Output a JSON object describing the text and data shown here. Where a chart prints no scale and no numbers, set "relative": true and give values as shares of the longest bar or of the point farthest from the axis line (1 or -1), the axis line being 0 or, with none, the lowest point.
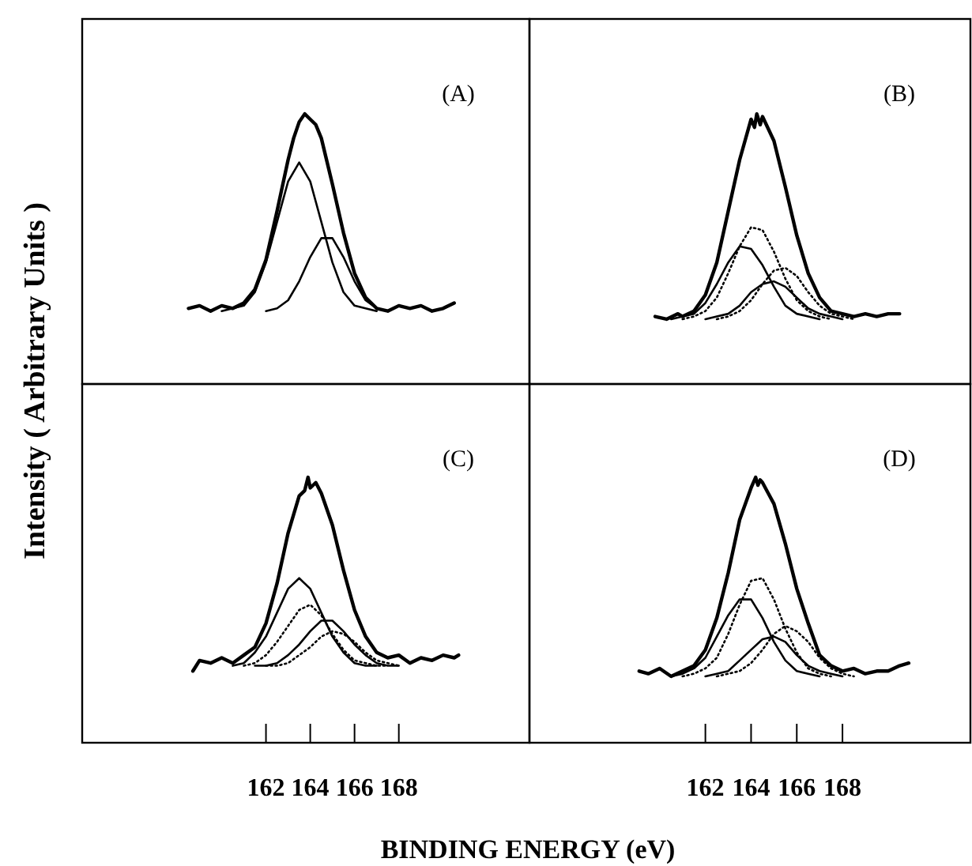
{
  "chart_data": [
    {
      "type": "line",
      "title": "(A)",
      "relative": true,
      "ylabel": "Intensity ( Arbitrary Units )",
      "xlim": [
        153.7,
        173.9
      ],
      "tick_labels": false,
      "series": [
        {
          "color": "#000000",
          "line_style": "solid",
          "x": [
            158.5,
            159,
            159.5,
            160,
            160.5,
            161,
            161.5,
            162,
            162.5,
            163,
            163.25,
            163.5,
            163.75,
            164,
            164.25,
            164.5,
            165,
            165.5,
            166,
            166.5,
            167,
            167.5,
            168,
            168.5,
            169,
            169.5,
            170,
            170.5
          ],
          "values": [
            0.28,
            0.29,
            0.27,
            0.29,
            0.28,
            0.3,
            0.35,
            0.46,
            0.64,
            0.83,
            0.91,
            0.97,
            1,
            0.98,
            0.96,
            0.91,
            0.74,
            0.56,
            0.41,
            0.32,
            0.28,
            0.27,
            0.29,
            0.28,
            0.29,
            0.27,
            0.28,
            0.3
          ]
        },
        {
          "color": "#000000",
          "line_style": "solid",
          "x": [
            160,
            160.5,
            161,
            161.5,
            162,
            162.5,
            163,
            163.5,
            164,
            164.5,
            165,
            165.5,
            166,
            166.5,
            167
          ],
          "values": [
            0.27,
            0.28,
            0.29,
            0.34,
            0.45,
            0.6,
            0.75,
            0.82,
            0.75,
            0.6,
            0.45,
            0.34,
            0.29,
            0.28,
            0.27
          ]
        },
        {
          "color": "#000000",
          "line_style": "solid",
          "x": [
            162,
            162.5,
            163,
            163.5,
            164,
            164.5,
            165,
            165.5,
            166,
            166.5,
            167,
            167.5
          ],
          "values": [
            0.27,
            0.28,
            0.31,
            0.38,
            0.47,
            0.54,
            0.54,
            0.47,
            0.38,
            0.31,
            0.28,
            0.27
          ]
        }
      ]
    },
    {
      "type": "line",
      "title": "(B)",
      "relative": true,
      "xlim": [
        154.3,
        173.6
      ],
      "tick_labels": false,
      "series": [
        {
          "color": "#000000",
          "line_style": "solid",
          "x": [
            159.8,
            160.3,
            160.8,
            161,
            161.5,
            162,
            162.5,
            163,
            163.5,
            164,
            164.15,
            164.25,
            164.4,
            164.5,
            165,
            165.5,
            166,
            166.5,
            167,
            167.5,
            168,
            168.5,
            169,
            169.5,
            170,
            170.5
          ],
          "values": [
            0.25,
            0.24,
            0.26,
            0.25,
            0.27,
            0.33,
            0.45,
            0.64,
            0.83,
            0.98,
            0.95,
            1,
            0.96,
            0.99,
            0.9,
            0.73,
            0.55,
            0.41,
            0.32,
            0.27,
            0.26,
            0.25,
            0.26,
            0.25,
            0.26,
            0.26
          ]
        },
        {
          "color": "#000000",
          "line_style": "solid",
          "x": [
            160.5,
            161,
            161.5,
            162,
            162.5,
            163,
            163.5,
            164,
            164.5,
            165,
            165.5,
            166,
            166.5,
            167
          ],
          "values": [
            0.24,
            0.25,
            0.26,
            0.3,
            0.37,
            0.45,
            0.51,
            0.5,
            0.44,
            0.36,
            0.29,
            0.26,
            0.25,
            0.24
          ]
        },
        {
          "color": "#000000",
          "line_style": "dotted",
          "x": [
            161,
            161.5,
            162,
            162.5,
            163,
            163.5,
            164,
            164.5,
            165,
            165.5,
            166,
            166.5,
            167,
            167.5
          ],
          "values": [
            0.24,
            0.25,
            0.27,
            0.32,
            0.41,
            0.51,
            0.58,
            0.57,
            0.49,
            0.39,
            0.31,
            0.27,
            0.25,
            0.24
          ]
        },
        {
          "color": "#000000",
          "line_style": "solid",
          "x": [
            162,
            162.5,
            163,
            163.5,
            164,
            164.5,
            165,
            165.5,
            166,
            166.5,
            167,
            167.5,
            168
          ],
          "values": [
            0.24,
            0.25,
            0.26,
            0.29,
            0.34,
            0.37,
            0.38,
            0.36,
            0.32,
            0.28,
            0.26,
            0.25,
            0.24
          ]
        },
        {
          "color": "#000000",
          "line_style": "dotted",
          "x": [
            162.5,
            163,
            163.5,
            164,
            164.5,
            165,
            165.5,
            166,
            166.5,
            167,
            167.5,
            168,
            168.5
          ],
          "values": [
            0.24,
            0.25,
            0.27,
            0.31,
            0.37,
            0.42,
            0.43,
            0.4,
            0.34,
            0.29,
            0.26,
            0.25,
            0.24
          ]
        }
      ]
    },
    {
      "type": "line",
      "title": "(C)",
      "relative": true,
      "xlabel": "BINDING ENERGY (eV)",
      "xlim": [
        153.7,
        173.9
      ],
      "xticks": [
        162,
        164,
        166,
        168
      ],
      "tick_labels": "x",
      "series": [
        {
          "color": "#000000",
          "line_style": "solid",
          "x": [
            158.7,
            159,
            159.5,
            160,
            160.5,
            161,
            161.5,
            162,
            162.5,
            163,
            163.5,
            163.75,
            163.9,
            164,
            164.25,
            164.5,
            165,
            165.5,
            166,
            166.5,
            167,
            167.5,
            168,
            168.5,
            169,
            169.5,
            170,
            170.5,
            170.7
          ],
          "values": [
            0.27,
            0.31,
            0.3,
            0.32,
            0.3,
            0.33,
            0.36,
            0.45,
            0.6,
            0.79,
            0.93,
            0.95,
            1,
            0.96,
            0.98,
            0.94,
            0.82,
            0.65,
            0.5,
            0.4,
            0.34,
            0.32,
            0.33,
            0.3,
            0.32,
            0.31,
            0.33,
            0.32,
            0.33
          ]
        },
        {
          "color": "#000000",
          "line_style": "solid",
          "x": [
            160.5,
            161,
            161.5,
            162,
            162.5,
            163,
            163.5,
            164,
            164.5,
            165,
            165.5,
            166,
            166.5,
            167
          ],
          "values": [
            0.29,
            0.3,
            0.34,
            0.4,
            0.49,
            0.58,
            0.62,
            0.58,
            0.49,
            0.4,
            0.34,
            0.3,
            0.29,
            0.29
          ]
        },
        {
          "color": "#000000",
          "line_style": "dotted",
          "x": [
            161,
            161.5,
            162,
            162.5,
            163,
            163.5,
            164,
            164.5,
            165,
            165.5,
            166,
            166.5,
            167,
            167.5
          ],
          "values": [
            0.29,
            0.3,
            0.33,
            0.38,
            0.44,
            0.5,
            0.52,
            0.48,
            0.41,
            0.35,
            0.31,
            0.3,
            0.29,
            0.29
          ]
        },
        {
          "color": "#000000",
          "line_style": "solid",
          "x": [
            161.5,
            162,
            162.5,
            163,
            163.5,
            164,
            164.5,
            165,
            165.5,
            166,
            166.5,
            167,
            167.5,
            168
          ],
          "values": [
            0.29,
            0.29,
            0.3,
            0.33,
            0.37,
            0.42,
            0.46,
            0.46,
            0.42,
            0.37,
            0.33,
            0.3,
            0.29,
            0.29
          ]
        },
        {
          "color": "#000000",
          "line_style": "dotted",
          "x": [
            162,
            162.5,
            163,
            163.5,
            164,
            164.5,
            165,
            165.5,
            166,
            166.5,
            167,
            167.5,
            168
          ],
          "values": [
            0.29,
            0.29,
            0.3,
            0.33,
            0.36,
            0.4,
            0.42,
            0.41,
            0.38,
            0.34,
            0.31,
            0.3,
            0.29
          ]
        }
      ]
    },
    {
      "type": "line",
      "title": "(D)",
      "relative": true,
      "xlim": [
        154.3,
        173.6
      ],
      "xticks": [
        162,
        164,
        166,
        168
      ],
      "tick_labels": "x",
      "series": [
        {
          "color": "#000000",
          "line_style": "solid",
          "x": [
            159.1,
            159.5,
            160,
            160.5,
            161,
            161.5,
            162,
            162.5,
            163,
            163.5,
            164,
            164.2,
            164.3,
            164.4,
            164.5,
            164.75,
            165,
            165.5,
            166,
            166.5,
            167,
            167.5,
            168,
            168.5,
            169,
            169.5,
            170,
            170.5,
            170.9
          ],
          "values": [
            0.27,
            0.26,
            0.28,
            0.25,
            0.27,
            0.29,
            0.35,
            0.47,
            0.64,
            0.84,
            0.96,
            1,
            0.97,
            0.99,
            0.98,
            0.94,
            0.9,
            0.75,
            0.58,
            0.45,
            0.33,
            0.29,
            0.27,
            0.28,
            0.26,
            0.27,
            0.27,
            0.29,
            0.3
          ]
        },
        {
          "color": "#000000",
          "line_style": "solid",
          "x": [
            160.5,
            161,
            161.5,
            162,
            162.5,
            163,
            163.5,
            164,
            164.5,
            165,
            165.5,
            166,
            166.5,
            167
          ],
          "values": [
            0.25,
            0.26,
            0.28,
            0.32,
            0.4,
            0.48,
            0.54,
            0.54,
            0.47,
            0.38,
            0.31,
            0.27,
            0.26,
            0.25
          ]
        },
        {
          "color": "#000000",
          "line_style": "dotted",
          "x": [
            161,
            161.5,
            162,
            162.5,
            163,
            163.5,
            164,
            164.5,
            165,
            165.5,
            166,
            166.5,
            167,
            167.5
          ],
          "values": [
            0.25,
            0.26,
            0.28,
            0.32,
            0.41,
            0.52,
            0.61,
            0.62,
            0.54,
            0.43,
            0.34,
            0.28,
            0.26,
            0.25
          ]
        },
        {
          "color": "#000000",
          "line_style": "solid",
          "x": [
            162,
            162.5,
            163,
            163.5,
            164,
            164.5,
            165,
            165.5,
            166,
            166.5,
            167,
            167.5,
            168
          ],
          "values": [
            0.25,
            0.26,
            0.27,
            0.31,
            0.35,
            0.39,
            0.4,
            0.38,
            0.33,
            0.29,
            0.27,
            0.26,
            0.25
          ]
        },
        {
          "color": "#000000",
          "line_style": "dotted",
          "x": [
            162.5,
            163,
            163.5,
            164,
            164.5,
            165,
            165.5,
            166,
            166.5,
            167,
            167.5,
            168,
            168.5
          ],
          "values": [
            0.25,
            0.26,
            0.27,
            0.3,
            0.35,
            0.41,
            0.44,
            0.42,
            0.38,
            0.32,
            0.28,
            0.26,
            0.25
          ]
        }
      ]
    }
  ]
}
